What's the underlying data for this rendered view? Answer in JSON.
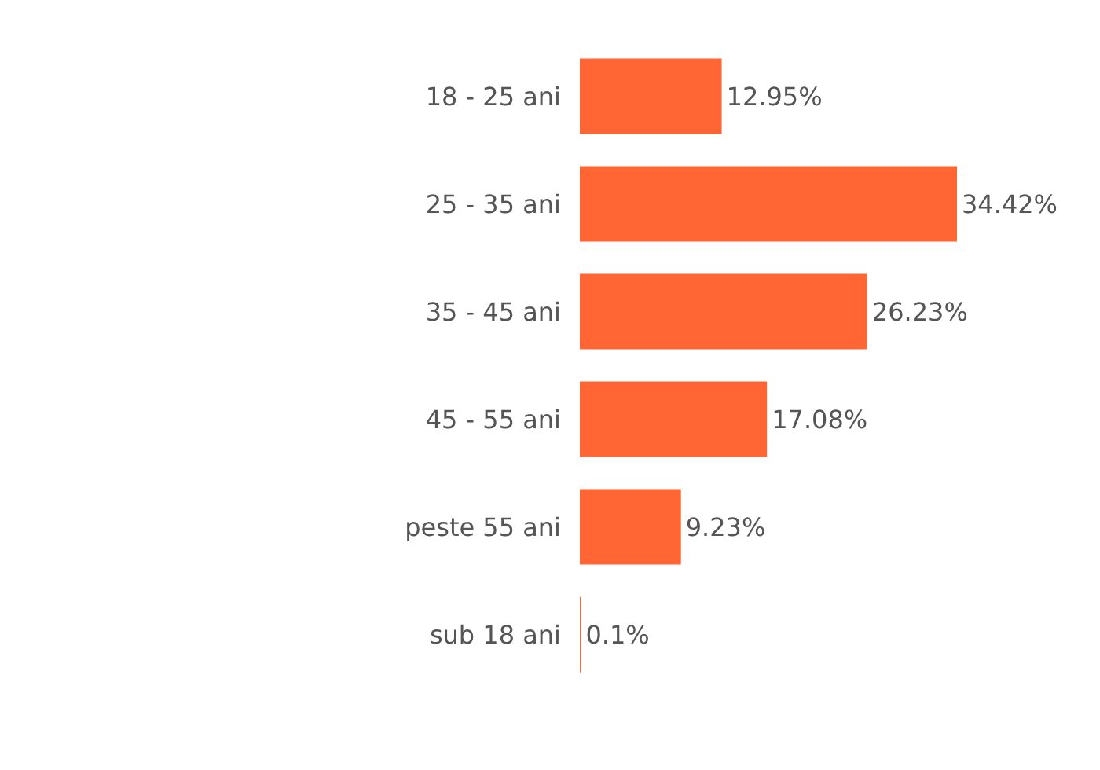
{
  "chart_data": {
    "type": "bar",
    "orientation": "horizontal",
    "categories": [
      "18 - 25 ani",
      "25 - 35 ani",
      "35 - 45 ani",
      "45 - 55 ani",
      "peste 55 ani",
      "sub 18 ani"
    ],
    "values": [
      12.95,
      34.42,
      26.23,
      17.08,
      9.23,
      0.1
    ],
    "value_labels": [
      "12.95%",
      "34.42%",
      "26.23%",
      "17.08%",
      "9.23%",
      "0.1%"
    ],
    "color": "#ff6633"
  }
}
